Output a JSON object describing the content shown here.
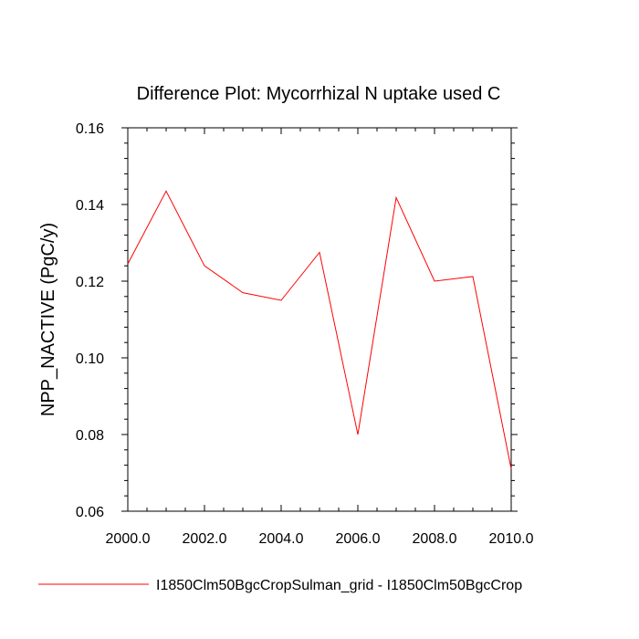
{
  "chart_data": {
    "type": "line",
    "title": "Difference Plot: Mycorrhizal N uptake used C",
    "xlabel": "",
    "ylabel": "NPP_NACTIVE  (PgC/y)",
    "xlim": [
      2000.0,
      2010.0
    ],
    "ylim": [
      0.06,
      0.16
    ],
    "x_ticks": [
      2000.0,
      2002.0,
      2004.0,
      2006.0,
      2008.0,
      2010.0
    ],
    "x_tick_labels": [
      "2000.0",
      "2002.0",
      "2004.0",
      "2006.0",
      "2008.0",
      "2010.0"
    ],
    "y_ticks": [
      0.06,
      0.08,
      0.1,
      0.12,
      0.14,
      0.16
    ],
    "y_tick_labels": [
      "0.06",
      "0.08",
      "0.10",
      "0.12",
      "0.14",
      "0.16"
    ],
    "grid": false,
    "legend_position": "bottom",
    "series": [
      {
        "name": "I1850Clm50BgcCropSulman_grid - I1850Clm50BgcCrop",
        "color": "#ff0000",
        "x": [
          2000,
          2001,
          2002,
          2003,
          2004,
          2005,
          2006,
          2007,
          2008,
          2009,
          2010
        ],
        "y": [
          0.1245,
          0.1435,
          0.124,
          0.117,
          0.115,
          0.1275,
          0.08,
          0.1418,
          0.12,
          0.1212,
          0.071
        ]
      }
    ]
  }
}
